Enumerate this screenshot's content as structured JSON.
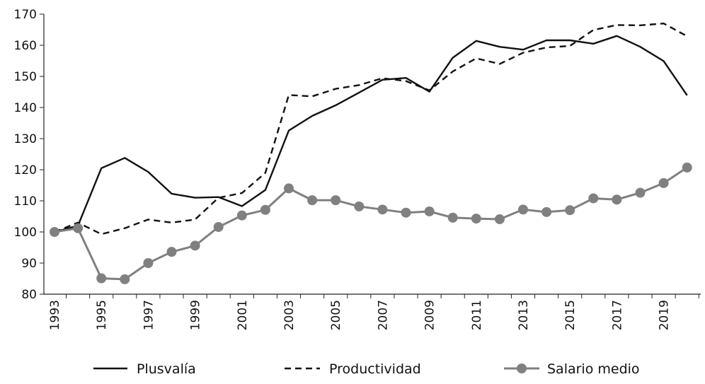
{
  "chart_data": {
    "type": "line",
    "title": "",
    "xlabel": "",
    "ylabel": "",
    "ylim": [
      80,
      170
    ],
    "y_ticks": [
      80,
      90,
      100,
      110,
      120,
      130,
      140,
      150,
      160,
      170
    ],
    "x": [
      1993,
      1994,
      1995,
      1996,
      1997,
      1998,
      1999,
      2000,
      2001,
      2002,
      2003,
      2004,
      2005,
      2006,
      2007,
      2008,
      2009,
      2010,
      2011,
      2012,
      2013,
      2014,
      2015,
      2016,
      2017,
      2018,
      2019,
      2020
    ],
    "x_tick_labels": [
      "1993",
      "1995",
      "1997",
      "1999",
      "2001",
      "2003",
      "2005",
      "2007",
      "2009",
      "2011",
      "2013",
      "2015",
      "2017",
      "2019"
    ],
    "series": [
      {
        "name": "Plusvalía",
        "style": "solid",
        "color": "#111111",
        "values": [
          100,
          102,
          120.5,
          123.8,
          119.3,
          112.3,
          111,
          111.2,
          108.3,
          113.5,
          132.6,
          137.3,
          140.7,
          144.8,
          148.9,
          149.5,
          145.1,
          156,
          161.4,
          159.5,
          158.6,
          161.6,
          161.6,
          160.5,
          163,
          159.5,
          154.9,
          143.9
        ]
      },
      {
        "name": "Productividad",
        "style": "dashed",
        "color": "#111111",
        "values": [
          100,
          103,
          99.3,
          101.2,
          104,
          103,
          104,
          111,
          112.5,
          119,
          144,
          143.6,
          146,
          147.2,
          149.4,
          148.5,
          145.5,
          151.6,
          155.8,
          154,
          157.6,
          159.3,
          159.8,
          164.9,
          166.5,
          166.4,
          167,
          162.9
        ]
      },
      {
        "name": "Salario medio",
        "style": "solid-markers",
        "color": "#808080",
        "values": [
          100,
          101.2,
          85.1,
          84.8,
          90,
          93.6,
          95.6,
          101.6,
          105.3,
          107.1,
          114,
          110.2,
          110.2,
          108.2,
          107.2,
          106.2,
          106.6,
          104.6,
          104.3,
          104.1,
          107.2,
          106.4,
          107,
          110.8,
          110.4,
          112.6,
          115.7,
          120.7
        ]
      }
    ],
    "legend": {
      "placement": "bottom",
      "entries": [
        "Plusvalía",
        "Productividad",
        "Salario medio"
      ]
    },
    "grid": false
  }
}
